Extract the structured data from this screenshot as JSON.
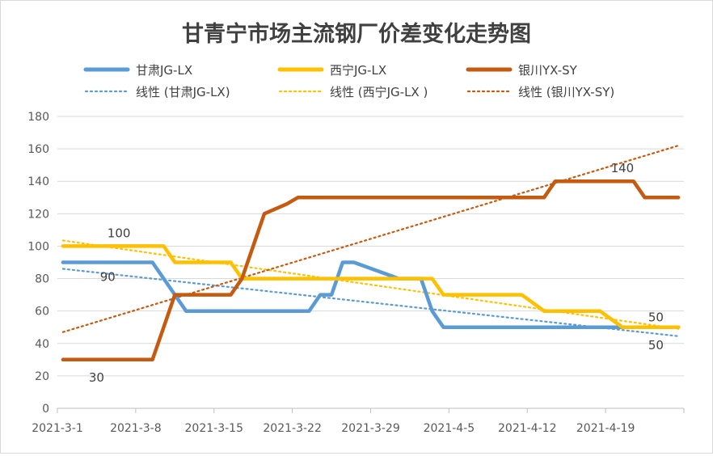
{
  "chart_data": {
    "type": "line",
    "title": "甘青宁市场主流钢厂价差变化走势图",
    "xlabel": "",
    "ylabel": "",
    "x": [
      "2021-3-1",
      "2021-3-2",
      "2021-3-3",
      "2021-3-4",
      "2021-3-5",
      "2021-3-6",
      "2021-3-7",
      "2021-3-8",
      "2021-3-9",
      "2021-3-10",
      "2021-3-11",
      "2021-3-12",
      "2021-3-13",
      "2021-3-14",
      "2021-3-15",
      "2021-3-16",
      "2021-3-17",
      "2021-3-18",
      "2021-3-19",
      "2021-3-20",
      "2021-3-21",
      "2021-3-22",
      "2021-3-23",
      "2021-3-24",
      "2021-3-25",
      "2021-3-26",
      "2021-3-27",
      "2021-3-28",
      "2021-3-29",
      "2021-3-30",
      "2021-3-31",
      "2021-4-1",
      "2021-4-2",
      "2021-4-3",
      "2021-4-4",
      "2021-4-5",
      "2021-4-6",
      "2021-4-7",
      "2021-4-8",
      "2021-4-9",
      "2021-4-10",
      "2021-4-11",
      "2021-4-12",
      "2021-4-13",
      "2021-4-14",
      "2021-4-15",
      "2021-4-16",
      "2021-4-17",
      "2021-4-18",
      "2021-4-19",
      "2021-4-20",
      "2021-4-21",
      "2021-4-22",
      "2021-4-23",
      "2021-4-24",
      "2021-4-25"
    ],
    "xticks": [
      "2021-3-1",
      "2021-3-8",
      "2021-3-15",
      "2021-3-22",
      "2021-3-29",
      "2021-4-5",
      "2021-4-12",
      "2021-4-19"
    ],
    "ylim": [
      0,
      180
    ],
    "yticks": [
      0,
      20,
      40,
      60,
      80,
      100,
      120,
      140,
      160,
      180
    ],
    "grid": "horizontal",
    "legend_position": "top",
    "series": [
      {
        "name": "甘肃JG-LX",
        "color": "#5b9bd5",
        "values": [
          90,
          90,
          90,
          90,
          90,
          90,
          90,
          90,
          90,
          80,
          70,
          60,
          60,
          60,
          60,
          60,
          60,
          60,
          60,
          60,
          60,
          60,
          60,
          70,
          70,
          90,
          90,
          87.5,
          85,
          82.5,
          80,
          80,
          80,
          60,
          50,
          50,
          50,
          50,
          50,
          50,
          50,
          50,
          50,
          50,
          50,
          50,
          50,
          50,
          50,
          50,
          50,
          50,
          50,
          50,
          50,
          50
        ]
      },
      {
        "name": "西宁JG-LX",
        "color": "#ffc000",
        "values": [
          100,
          100,
          100,
          100,
          100,
          100,
          100,
          100,
          100,
          100,
          90,
          90,
          90,
          90,
          90,
          90,
          80,
          80,
          80,
          80,
          80,
          80,
          80,
          80,
          80,
          80,
          80,
          80,
          80,
          80,
          80,
          80,
          80,
          80,
          70,
          70,
          70,
          70,
          70,
          70,
          70,
          70,
          65,
          60,
          60,
          60,
          60,
          60,
          60,
          55,
          50,
          50,
          50,
          50,
          50,
          50
        ]
      },
      {
        "name": "银川YX-SY",
        "color": "#c55a11",
        "values": [
          30,
          30,
          30,
          30,
          30,
          30,
          30,
          30,
          30,
          50,
          70,
          70,
          70,
          70,
          70,
          70,
          80,
          100,
          120,
          123,
          126,
          130,
          130,
          130,
          130,
          130,
          130,
          130,
          130,
          130,
          130,
          130,
          130,
          130,
          130,
          130,
          130,
          130,
          130,
          130,
          130,
          130,
          130,
          130,
          140,
          140,
          140,
          140,
          140,
          140,
          140,
          140,
          130,
          130,
          130,
          130
        ]
      }
    ],
    "trendlines": [
      {
        "name": "线性 (甘肃JG-LX)",
        "color": "#5b9bd5",
        "start": 86,
        "end": 44.5
      },
      {
        "name": "线性 (西宁JG-LX )",
        "color": "#ffc000",
        "start": 103.5,
        "end": 49
      },
      {
        "name": "线性 (银川YX-SY)",
        "color": "#c55a11",
        "start": 47,
        "end": 162
      }
    ],
    "annotations": [
      {
        "text": "100",
        "x": "2021-3-6",
        "y": 108
      },
      {
        "text": "90",
        "x": "2021-3-5",
        "y": 81
      },
      {
        "text": "30",
        "x": "2021-3-4",
        "y": 19
      },
      {
        "text": "140",
        "x": "2021-4-20",
        "y": 148
      },
      {
        "text": "50",
        "x": "2021-4-23",
        "y": 56
      },
      {
        "text": "50",
        "x": "2021-4-23",
        "y": 39
      }
    ]
  }
}
